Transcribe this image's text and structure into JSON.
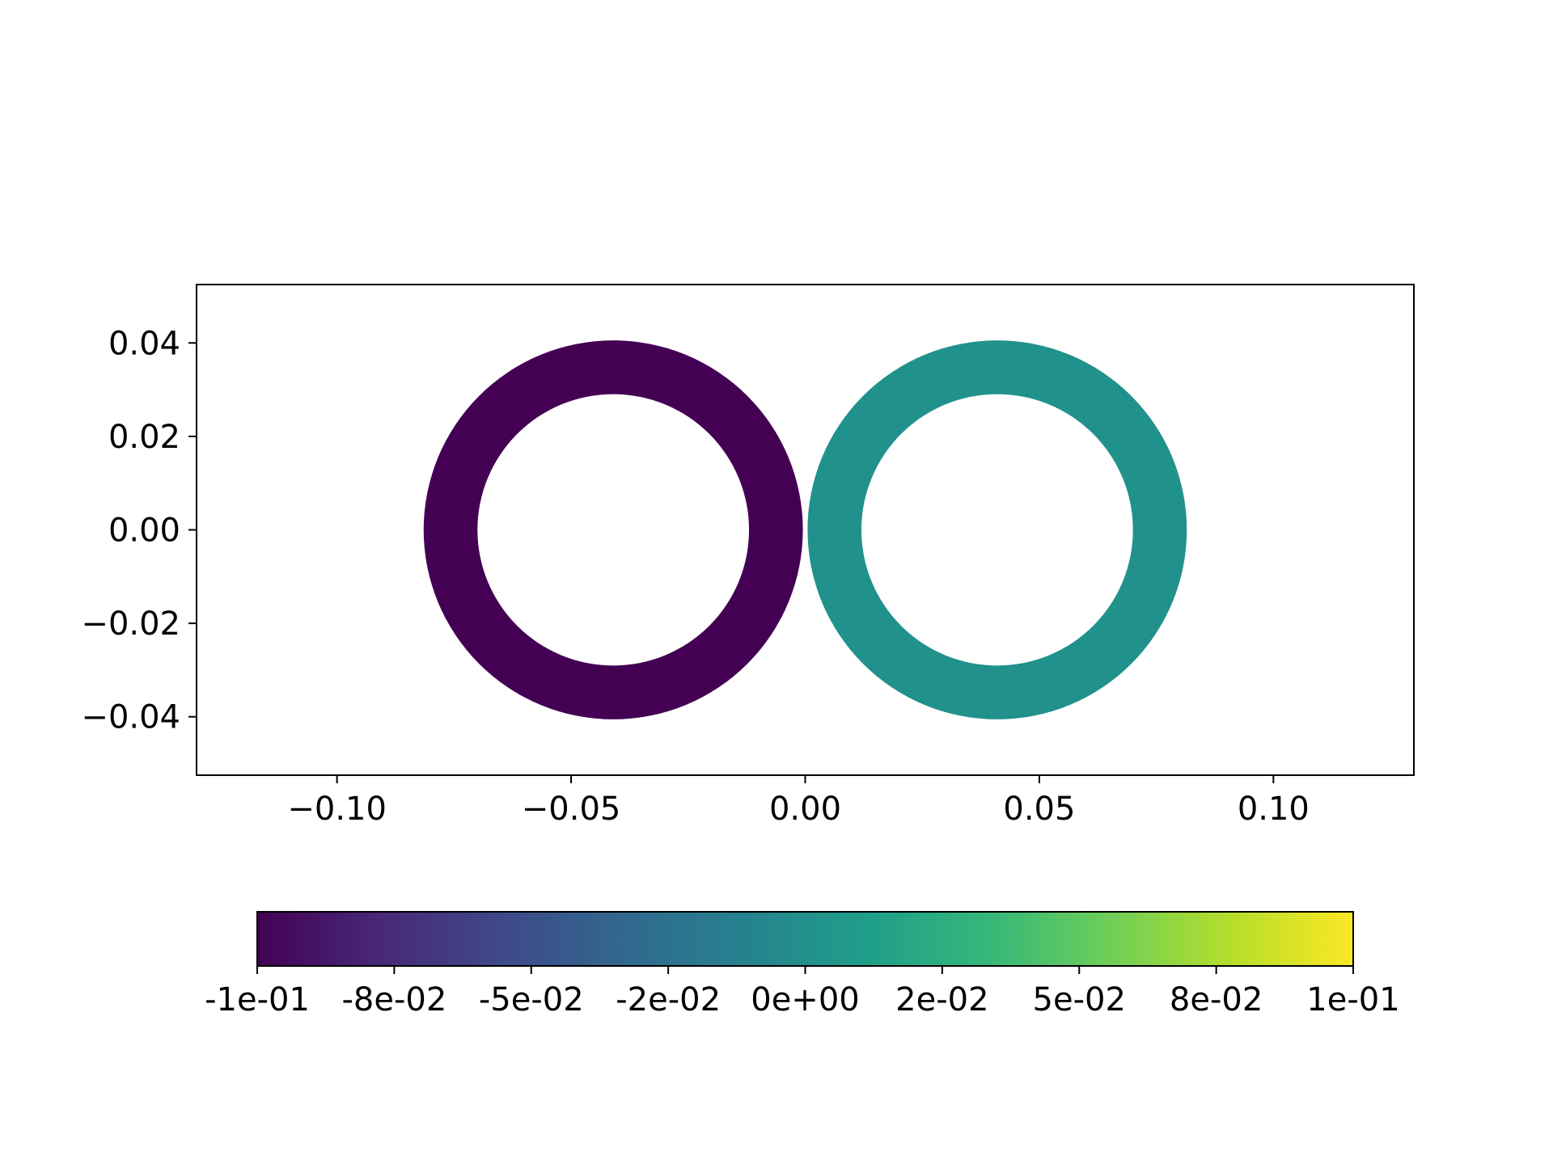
{
  "chart_data": [
    {
      "type": "scatter",
      "marker": "annulus",
      "colormap": "viridis",
      "xlim": [
        -0.13,
        0.13
      ],
      "ylim": [
        -0.0525,
        0.0525
      ],
      "xticks": [
        -0.1,
        -0.05,
        0.0,
        0.05,
        0.1
      ],
      "xtick_labels": [
        "−0.10",
        "−0.05",
        "0.00",
        "0.05",
        "0.10"
      ],
      "yticks": [
        0.04,
        0.02,
        0.0,
        -0.02,
        -0.04
      ],
      "ytick_labels": [
        "0.04",
        "0.02",
        "0.00",
        "−0.02",
        "−0.04"
      ],
      "series": [
        {
          "points": [
            {
              "x": -0.041,
              "y": 0.0,
              "outer_radius": 0.0405,
              "inner_radius": 0.029,
              "value": -0.1,
              "color": "#440154"
            },
            {
              "x": 0.041,
              "y": 0.0,
              "outer_radius": 0.0405,
              "inner_radius": 0.029,
              "value": 0.0,
              "color": "#21918c"
            }
          ]
        }
      ],
      "grid": false
    },
    {
      "type": "colorbar",
      "orientation": "horizontal",
      "colormap": "viridis",
      "range": [
        -0.1,
        0.1
      ],
      "ticks": [
        -0.1,
        -0.075,
        -0.05,
        -0.025,
        0.0,
        0.025,
        0.05,
        0.075,
        0.1
      ],
      "tick_labels": [
        "-1e-01",
        "-8e-02",
        "-5e-02",
        "-2e-02",
        "0e+00",
        "2e-02",
        "5e-02",
        "8e-02",
        "1e-01"
      ],
      "gradient_stops": [
        "#440154",
        "#482878",
        "#3e4989",
        "#31688e",
        "#26828e",
        "#1f9e89",
        "#35b779",
        "#6ece58",
        "#b5de2b",
        "#fde725"
      ]
    }
  ]
}
